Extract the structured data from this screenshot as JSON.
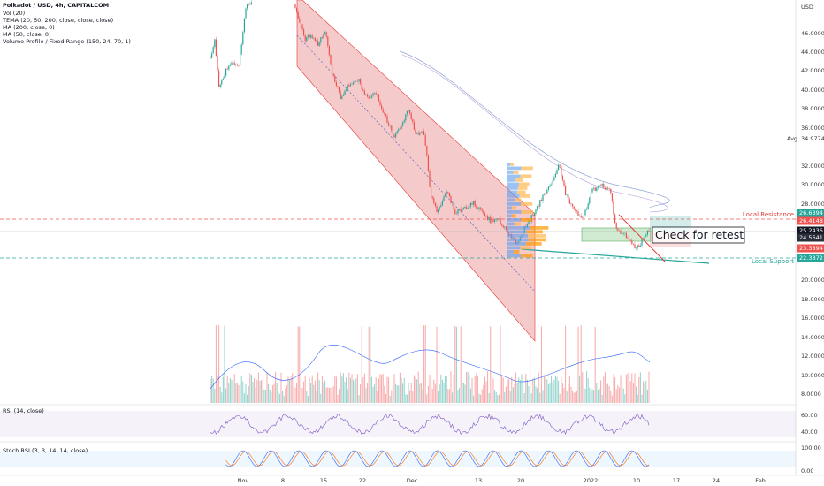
{
  "header": {
    "symbol": "Polkadot / USD, 4h, CAPITALCOM",
    "indicators": [
      "Vol (20)",
      "TEMA (20, 50, 200, close, close, close)",
      "MA (200, close, 0)",
      "MA (50, close, 0)",
      "Volume Profile / Fixed Range (150, 24, 70, 1)"
    ]
  },
  "price_axis": {
    "currency": "USD",
    "labels": [
      "46.0000",
      "44.0000",
      "42.0000",
      "40.0000",
      "38.0000",
      "36.0000",
      "32.0000",
      "30.0000",
      "28.0000",
      "20.0000",
      "18.0000",
      "16.0000",
      "14.0000",
      "12.0000",
      "10.0000",
      "8.0000"
    ],
    "avg_label": "Avg",
    "avg_value": "34.9774",
    "badges": [
      "26.6394",
      "26.4148",
      "25.2436",
      "24.5641",
      "23.3894",
      "22.3872"
    ]
  },
  "annotations": {
    "resistance": "Local Resistance",
    "support": "Local Support",
    "retest": "Check for retest"
  },
  "rsi": {
    "title": "RSI (14, close)",
    "labels": [
      "60.00",
      "40.00"
    ]
  },
  "stoch_rsi": {
    "title": "Stoch RSI (3, 3, 14, 14, close)",
    "labels": [
      "100.00",
      "0.00"
    ]
  },
  "time_axis": [
    "Nov",
    "8",
    "15",
    "22",
    "Dec",
    "13",
    "20",
    "2022",
    "10",
    "17",
    "24",
    "Feb"
  ]
}
